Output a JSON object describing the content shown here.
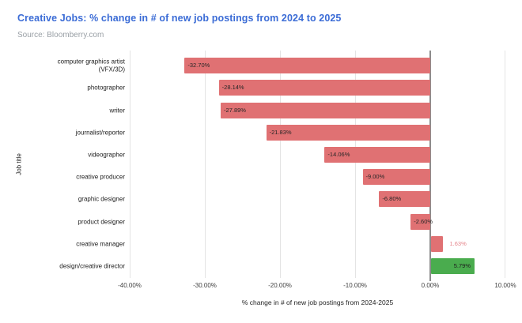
{
  "chart_data": {
    "type": "bar",
    "orientation": "horizontal",
    "title": "Creative Jobs: % change in # of new job postings from 2024 to 2025",
    "source": "Source: Bloomberry.com",
    "xlabel": "% change in # of new job postings from 2024-2025",
    "ylabel": "Job title",
    "xlim": [
      -40,
      10
    ],
    "grid": true,
    "x_ticks": [
      {
        "value": -40,
        "label": "-40.00%"
      },
      {
        "value": -30,
        "label": "-30.00%"
      },
      {
        "value": -20,
        "label": "-20.00%"
      },
      {
        "value": -10,
        "label": "-10.00%"
      },
      {
        "value": 0,
        "label": "0.00%"
      },
      {
        "value": 10,
        "label": "10.00%"
      }
    ],
    "categories": [
      "computer graphics artist (VFX/3D)",
      "photographer",
      "writer",
      "journalist/reporter",
      "videographer",
      "creative producer",
      "graphic designer",
      "product designer",
      "creative manager",
      "design/creative director"
    ],
    "values": [
      -32.7,
      -28.14,
      -27.89,
      -21.83,
      -14.06,
      -9.0,
      -6.8,
      -2.6,
      1.63,
      5.79
    ],
    "rows": [
      {
        "category": "computer graphics artist (VFX/3D)",
        "label_lines": "computer graphics artist\n(VFX/3D)",
        "value": -32.7,
        "display": "-32.70%",
        "bar_color": "#e07173",
        "value_label_pos": "inside-left",
        "value_label_color": "#262626"
      },
      {
        "category": "photographer",
        "label_lines": "photographer",
        "value": -28.14,
        "display": "-28.14%",
        "bar_color": "#e07173",
        "value_label_pos": "inside-left",
        "value_label_color": "#262626"
      },
      {
        "category": "writer",
        "label_lines": "writer",
        "value": -27.89,
        "display": "-27.89%",
        "bar_color": "#e07173",
        "value_label_pos": "inside-left",
        "value_label_color": "#262626"
      },
      {
        "category": "journalist/reporter",
        "label_lines": "journalist/reporter",
        "value": -21.83,
        "display": "-21.83%",
        "bar_color": "#e07173",
        "value_label_pos": "inside-left",
        "value_label_color": "#262626"
      },
      {
        "category": "videographer",
        "label_lines": "videographer",
        "value": -14.06,
        "display": "-14.06%",
        "bar_color": "#e07173",
        "value_label_pos": "inside-left",
        "value_label_color": "#262626"
      },
      {
        "category": "creative producer",
        "label_lines": "creative producer",
        "value": -9.0,
        "display": "-9.00%",
        "bar_color": "#e07173",
        "value_label_pos": "inside-left",
        "value_label_color": "#262626"
      },
      {
        "category": "graphic designer",
        "label_lines": "graphic designer",
        "value": -6.8,
        "display": "-6.80%",
        "bar_color": "#e07173",
        "value_label_pos": "inside-left",
        "value_label_color": "#262626"
      },
      {
        "category": "product designer",
        "label_lines": "product designer",
        "value": -2.6,
        "display": "-2.60%",
        "bar_color": "#e07173",
        "value_label_pos": "inside-left",
        "value_label_color": "#262626"
      },
      {
        "category": "creative manager",
        "label_lines": "creative manager",
        "value": 1.63,
        "display": "1.63%",
        "bar_color": "#e07173",
        "value_label_pos": "outside-right",
        "value_label_color": "#e5848a"
      },
      {
        "category": "design/creative director",
        "label_lines": "design/creative director",
        "value": 5.79,
        "display": "5.79%",
        "bar_color": "#4aac4e",
        "value_label_pos": "inside-right",
        "value_label_color": "#1d1d1d"
      }
    ],
    "colors": {
      "negative_bar": "#e07173",
      "positive_bar": "#4aac4e",
      "title": "#3b6cd6",
      "source_text": "#9aa0a6",
      "gridline": "#e4e4e4",
      "zero_line": "#8c8c8c"
    },
    "legend": "none"
  }
}
